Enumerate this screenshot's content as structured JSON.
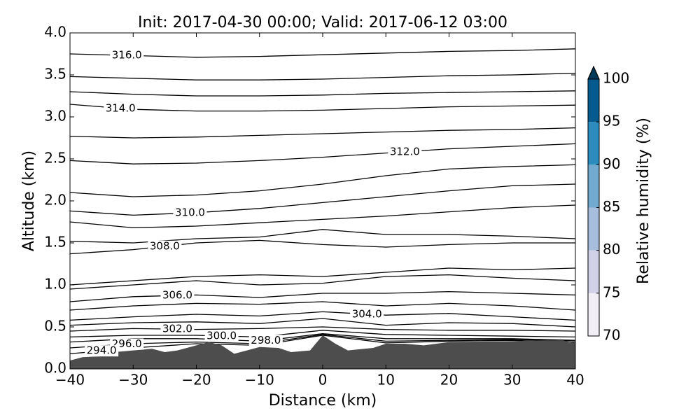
{
  "chart_data": {
    "type": "contour",
    "title": "Init: 2017-04-30 00:00; Valid: 2017-06-12 03:00",
    "xlabel": "Distance (km)",
    "ylabel": "Altitude (km)",
    "xlim": [
      -40,
      40
    ],
    "ylim": [
      0.0,
      4.0
    ],
    "xticks": [
      {
        "value": -40,
        "label": "−40"
      },
      {
        "value": -30,
        "label": "−30"
      },
      {
        "value": -20,
        "label": "−20"
      },
      {
        "value": -10,
        "label": "−10"
      },
      0,
      10,
      20,
      30,
      40
    ],
    "yticks": [
      {
        "value": 0,
        "label": "0.0"
      },
      0.5,
      {
        "value": 1,
        "label": "1.0"
      },
      1.5,
      {
        "value": 2,
        "label": "2.0"
      },
      2.5,
      {
        "value": 3,
        "label": "3.0"
      },
      3.5,
      {
        "value": 4,
        "label": "4.0"
      }
    ],
    "line_color": "#000000",
    "x": [
      -40,
      -30,
      -20,
      -10,
      0,
      10,
      20,
      30,
      40
    ],
    "contours": [
      {
        "label": "316.0",
        "values": [
          3.75,
          3.73,
          3.71,
          3.72,
          3.74,
          3.76,
          3.78,
          3.79,
          3.81
        ]
      },
      {
        "values": [
          3.48,
          3.46,
          3.44,
          3.44,
          3.45,
          3.47,
          3.49,
          3.5,
          3.52
        ]
      },
      {
        "values": [
          3.3,
          3.27,
          3.25,
          3.25,
          3.26,
          3.28,
          3.29,
          3.3,
          3.31
        ]
      },
      {
        "label": "314.0",
        "values": [
          3.15,
          3.09,
          3.07,
          3.07,
          3.08,
          3.1,
          3.12,
          3.13,
          3.14
        ]
      },
      {
        "values": [
          2.77,
          2.75,
          2.76,
          2.78,
          2.8,
          2.82,
          2.84,
          2.85,
          2.87
        ]
      },
      {
        "label": "312.0",
        "values": [
          2.48,
          2.44,
          2.45,
          2.48,
          2.52,
          2.57,
          2.62,
          2.65,
          2.68
        ]
      },
      {
        "values": [
          2.1,
          2.05,
          2.07,
          2.12,
          2.2,
          2.3,
          2.38,
          2.41,
          2.43
        ]
      },
      {
        "label": "310.0",
        "values": [
          1.88,
          1.83,
          1.86,
          1.91,
          1.98,
          2.05,
          2.12,
          2.18,
          2.2
        ]
      },
      {
        "values": [
          1.75,
          1.68,
          1.7,
          1.74,
          1.78,
          1.82,
          1.87,
          1.92,
          1.95
        ]
      },
      {
        "values": [
          1.52,
          1.5,
          1.55,
          1.57,
          1.66,
          1.6,
          1.6,
          1.58,
          1.55
        ]
      },
      {
        "label": "308.0",
        "values": [
          1.37,
          1.42,
          1.5,
          1.53,
          1.48,
          1.45,
          1.48,
          1.5,
          1.5
        ]
      },
      {
        "values": [
          1.0,
          1.05,
          1.1,
          1.12,
          1.1,
          1.15,
          1.2,
          1.18,
          1.2
        ]
      },
      {
        "values": [
          0.95,
          1.0,
          1.05,
          1.0,
          1.02,
          1.1,
          1.12,
          1.08,
          1.05
        ]
      },
      {
        "label": "306.0",
        "values": [
          0.8,
          0.86,
          0.88,
          0.85,
          0.9,
          0.9,
          0.92,
          0.9,
          0.88
        ]
      },
      {
        "values": [
          0.7,
          0.75,
          0.78,
          0.77,
          0.8,
          0.75,
          0.78,
          0.75,
          0.7
        ]
      },
      {
        "label": "304.0",
        "values": [
          0.58,
          0.62,
          0.65,
          0.63,
          0.68,
          0.64,
          0.66,
          0.62,
          0.58
        ]
      },
      {
        "values": [
          0.52,
          0.55,
          0.56,
          0.54,
          0.6,
          0.52,
          0.55,
          0.54,
          0.5
        ]
      },
      {
        "label": "302.0",
        "values": [
          0.45,
          0.48,
          0.47,
          0.48,
          0.5,
          0.47,
          0.46,
          0.46,
          0.45
        ]
      },
      {
        "label": "300.0",
        "values": [
          0.38,
          0.4,
          0.4,
          0.38,
          0.46,
          0.41,
          0.4,
          0.39,
          0.38
        ]
      },
      {
        "label": "298.0",
        "values": [
          0.32,
          0.36,
          0.36,
          0.33,
          0.42,
          0.36,
          0.36,
          0.36,
          0.34
        ]
      },
      {
        "label": "296.0",
        "values": [
          0.25,
          0.3,
          0.32,
          0.3,
          0.41,
          0.33,
          0.34,
          0.35,
          0.33
        ]
      },
      {
        "label": "294.0",
        "values": [
          0.18,
          0.25,
          0.3,
          0.28,
          0.4,
          0.31,
          0.33,
          0.34,
          0.31
        ]
      }
    ],
    "terrain": {
      "color": "#4d4d4d",
      "x": [
        -40,
        -38,
        -35,
        -33,
        -30,
        -27,
        -25,
        -23,
        -20,
        -18,
        -16,
        -14,
        -12,
        -10,
        -7,
        -5,
        -2,
        0,
        2,
        4,
        8,
        10,
        13,
        16,
        20,
        30,
        35,
        38,
        40
      ],
      "values": [
        0.1,
        0.14,
        0.15,
        0.2,
        0.22,
        0.24,
        0.2,
        0.22,
        0.28,
        0.32,
        0.28,
        0.18,
        0.22,
        0.26,
        0.25,
        0.2,
        0.22,
        0.4,
        0.3,
        0.22,
        0.25,
        0.3,
        0.3,
        0.28,
        0.32,
        0.33,
        0.34,
        0.34,
        0.3
      ]
    },
    "colorbar": {
      "label": "Relative humidity (%)",
      "ticks": [
        70,
        75,
        80,
        85,
        90,
        95,
        100
      ],
      "colors": [
        "#f1eef6",
        "#d0d1e6",
        "#a6bddb",
        "#74a9cf",
        "#2b8cbe",
        "#045a8d"
      ],
      "extend_color": "#023858"
    }
  }
}
